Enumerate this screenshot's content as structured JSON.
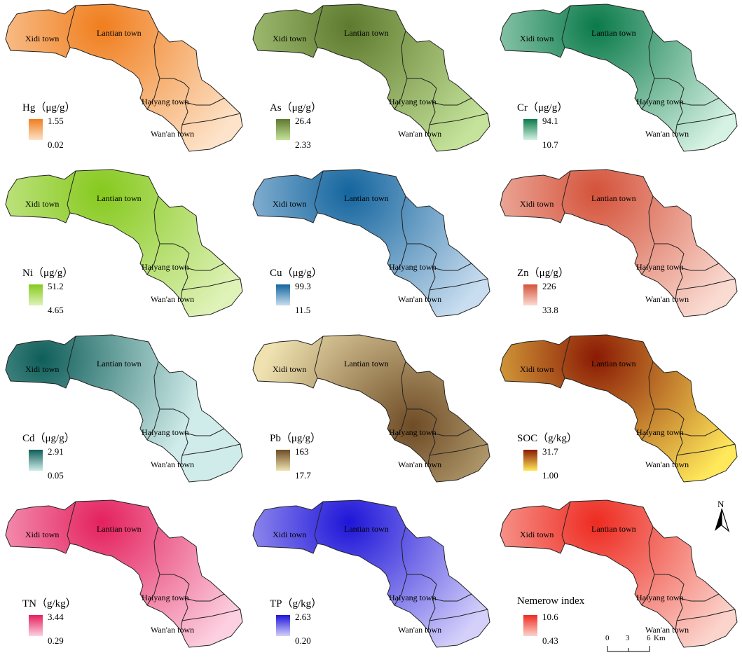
{
  "towns": [
    "Xidi town",
    "Lantian town",
    "Haiyang town",
    "Wan'an town"
  ],
  "north_label": "N",
  "scale": {
    "ticks": [
      "0",
      "3",
      "6"
    ],
    "unit": "Km"
  },
  "panels": [
    {
      "id": "hg",
      "title": "Hg（μg/g）",
      "max": "1.55",
      "min": "0.02",
      "color_high": "#f07e1e",
      "color_low": "#fde3c9",
      "hotspot": "Lantian town"
    },
    {
      "id": "as",
      "title": "As（μg/g）",
      "max": "26.4",
      "min": "2.33",
      "color_high": "#5e7a2e",
      "color_low": "#c5e39a",
      "hotspot": "Lantian town"
    },
    {
      "id": "cr",
      "title": "Cr（μg/g）",
      "max": "94.1",
      "min": "10.7",
      "color_high": "#0a7a4a",
      "color_low": "#d6f2e3",
      "hotspot": "Lantian town"
    },
    {
      "id": "ni",
      "title": "Ni（μg/g）",
      "max": "51.2",
      "min": "4.65",
      "color_high": "#86c91e",
      "color_low": "#dff2b8",
      "hotspot": "Lantian town"
    },
    {
      "id": "cu",
      "title": "Cu（μg/g）",
      "max": "99.3",
      "min": "11.5",
      "color_high": "#14659e",
      "color_low": "#c8ddef",
      "hotspot": "Lantian town"
    },
    {
      "id": "zn",
      "title": "Zn（μg/g）",
      "max": "226",
      "min": "33.8",
      "color_high": "#d4523a",
      "color_low": "#fadbd2",
      "hotspot": "Lantian town"
    },
    {
      "id": "cd",
      "title": "Cd（μg/g）",
      "max": "2.91",
      "min": "0.05",
      "color_high": "#0f5e5a",
      "color_low": "#d0ecea",
      "hotspot": "Xidi town"
    },
    {
      "id": "pb",
      "title": "Pb（μg/g）",
      "max": "163",
      "min": "17.7",
      "color_high": "#6e4b25",
      "color_low": "#efe2b0",
      "hotspot": "Haiyang town"
    },
    {
      "id": "soc",
      "title": "SOC（g/kg）",
      "max": "31.7",
      "min": "1.00",
      "color_high": "#8a1a04",
      "color_low": "#ffe85a",
      "hotspot": "Lantian town"
    },
    {
      "id": "tn",
      "title": "TN（g/kg）",
      "max": "3.44",
      "min": "0.29",
      "color_high": "#e4215e",
      "color_low": "#fcd0e0",
      "hotspot": "Lantian town"
    },
    {
      "id": "tp",
      "title": "TP（g/kg）",
      "max": "2.63",
      "min": "0.20",
      "color_high": "#1e15d8",
      "color_low": "#d4d0fa",
      "hotspot": "Lantian town"
    },
    {
      "id": "nem",
      "title": "Nemerow index",
      "max": "10.6",
      "min": "0.43",
      "color_high": "#ee2b21",
      "color_low": "#fbd4cc",
      "hotspot": "Lantian town"
    }
  ]
}
